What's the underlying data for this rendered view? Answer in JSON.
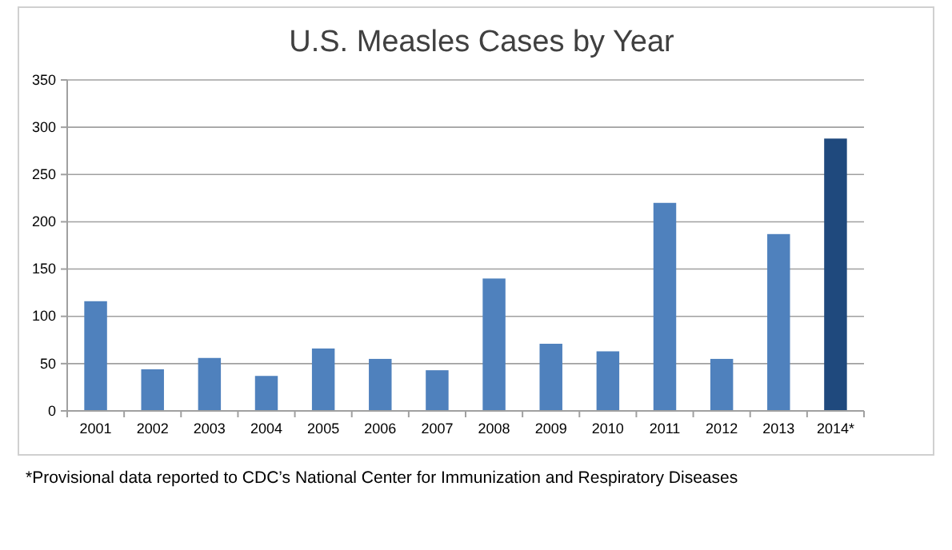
{
  "chart_data": {
    "type": "bar",
    "title": "U.S. Measles Cases by Year",
    "categories": [
      "2001",
      "2002",
      "2003",
      "2004",
      "2005",
      "2006",
      "2007",
      "2008",
      "2009",
      "2010",
      "2011",
      "2012",
      "2013",
      "2014*"
    ],
    "values": [
      116,
      44,
      56,
      37,
      66,
      55,
      43,
      140,
      71,
      63,
      220,
      55,
      187,
      288
    ],
    "colors": [
      "#4f81bd",
      "#4f81bd",
      "#4f81bd",
      "#4f81bd",
      "#4f81bd",
      "#4f81bd",
      "#4f81bd",
      "#4f81bd",
      "#4f81bd",
      "#4f81bd",
      "#4f81bd",
      "#4f81bd",
      "#4f81bd",
      "#1f497d"
    ],
    "ylim": [
      0,
      350
    ],
    "yticks": [
      0,
      50,
      100,
      150,
      200,
      250,
      300,
      350
    ],
    "grid": "y",
    "annotations": [
      "*Provisional data reported to CDC’s National Center for Immunization and Respiratory Diseases"
    ]
  }
}
